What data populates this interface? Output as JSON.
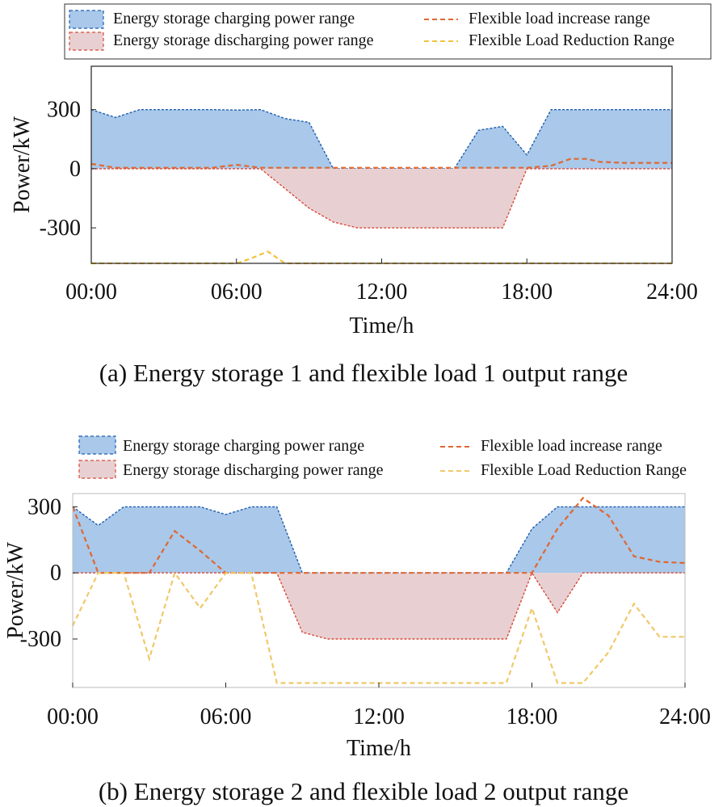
{
  "colors": {
    "charge_fill": "#a9c8ea",
    "charge_line": "#1f5fb0",
    "discharge_fill": "#e8d0d2",
    "discharge_line": "#d84a3a",
    "increase_line": "#e0672f",
    "reduction_line": "#f2c13c",
    "reduction_line_b": "#f0c869",
    "axis": "#222222",
    "plot_border_b": "#bbbbbb"
  },
  "chart_data": [
    {
      "type": "area",
      "caption": "(a) Energy storage 1 and flexible load 1 output range",
      "xlabel": "Time/h",
      "ylabel": "Power/kW",
      "xlim": [
        0,
        24
      ],
      "ylim": [
        -480,
        520
      ],
      "xticks": [
        0,
        6,
        12,
        18,
        24
      ],
      "xtick_labels": [
        "00:00",
        "06:00",
        "12:00",
        "18:00",
        "24:00"
      ],
      "yticks": [
        300,
        0,
        -300
      ],
      "ytick_labels": [
        "300",
        "0",
        "-300"
      ],
      "grid": false,
      "legend_position": "top",
      "legend": [
        {
          "key": "charge",
          "label": "Energy storage charging power range"
        },
        {
          "key": "discharge",
          "label": "Energy storage discharging power range"
        },
        {
          "key": "increase",
          "label": "Flexible load increase range"
        },
        {
          "key": "reduction",
          "label": "Flexible Load Reduction Range"
        }
      ],
      "series": [
        {
          "name": "Energy storage charging power range",
          "key": "charge",
          "x": [
            0,
            1,
            2,
            3,
            4,
            5,
            6,
            7,
            8,
            9,
            10,
            11,
            12,
            13,
            14,
            15,
            16,
            17,
            18,
            19,
            20,
            21,
            22,
            23,
            24
          ],
          "values": [
            300,
            260,
            300,
            300,
            300,
            300,
            298,
            300,
            255,
            235,
            0,
            0,
            0,
            0,
            0,
            0,
            195,
            215,
            70,
            300,
            300,
            300,
            300,
            300,
            300
          ]
        },
        {
          "name": "Energy storage discharging power range",
          "key": "discharge",
          "x": [
            0,
            7,
            8,
            9,
            10,
            11,
            12,
            13,
            14,
            15,
            16,
            17,
            18,
            24
          ],
          "values": [
            0,
            0,
            -100,
            -200,
            -270,
            -300,
            -300,
            -300,
            -300,
            -300,
            -300,
            -300,
            0,
            0
          ]
        },
        {
          "name": "Flexible load increase range",
          "key": "increase",
          "x": [
            0,
            1,
            2,
            3,
            4,
            5,
            6,
            7,
            8,
            9,
            10,
            11,
            12,
            13,
            14,
            15,
            16,
            17,
            18,
            19,
            19.8,
            20.5,
            21,
            22,
            23,
            24
          ],
          "values": [
            25,
            5,
            5,
            5,
            5,
            5,
            20,
            5,
            5,
            5,
            5,
            5,
            5,
            5,
            5,
            5,
            5,
            5,
            5,
            15,
            50,
            50,
            35,
            30,
            30,
            30
          ]
        },
        {
          "name": "Flexible Load Reduction Range",
          "key": "reduction",
          "x": [
            0,
            6,
            6.5,
            7.3,
            8,
            24
          ],
          "values": [
            -480,
            -480,
            -460,
            -420,
            -480,
            -480
          ]
        }
      ]
    },
    {
      "type": "area",
      "caption": "(b) Energy storage 2 and flexible load 2 output range",
      "xlabel": "Time/h",
      "ylabel": "Power/kW",
      "xlim": [
        0,
        24
      ],
      "ylim": [
        -520,
        360
      ],
      "xticks": [
        0,
        6,
        12,
        18,
        24
      ],
      "xtick_labels": [
        "00:00",
        "06:00",
        "12:00",
        "18:00",
        "24:00"
      ],
      "yticks": [
        300,
        0,
        -300
      ],
      "ytick_labels": [
        "300",
        "0",
        "-300"
      ],
      "grid": false,
      "legend_position": "top",
      "legend": [
        {
          "key": "charge",
          "label": "Energy storage charging power range"
        },
        {
          "key": "discharge",
          "label": "Energy storage discharging power range"
        },
        {
          "key": "increase",
          "label": "Flexible load increase range"
        },
        {
          "key": "reduction",
          "label": "Flexible Load Reduction Range"
        }
      ],
      "series": [
        {
          "name": "Energy storage charging power range",
          "key": "charge",
          "x": [
            0,
            1,
            2,
            3,
            4,
            5,
            6,
            7,
            8,
            9,
            10,
            11,
            12,
            13,
            14,
            15,
            16,
            17,
            18,
            19,
            20,
            21,
            22,
            23,
            24
          ],
          "values": [
            300,
            215,
            300,
            300,
            300,
            300,
            265,
            300,
            300,
            0,
            0,
            0,
            0,
            0,
            0,
            0,
            0,
            0,
            200,
            300,
            300,
            300,
            300,
            300,
            300
          ]
        },
        {
          "name": "Energy storage discharging power range",
          "key": "discharge",
          "x": [
            0,
            8,
            9,
            10,
            11,
            12,
            13,
            14,
            15,
            16,
            17,
            18,
            19,
            20,
            24
          ],
          "values": [
            0,
            0,
            -270,
            -300,
            -300,
            -300,
            -300,
            -300,
            -300,
            -300,
            -300,
            0,
            -180,
            0,
            0
          ]
        },
        {
          "name": "Flexible load increase range",
          "key": "increase",
          "x": [
            0,
            1,
            2,
            3,
            4,
            5,
            6,
            7,
            8,
            9,
            10,
            11,
            12,
            13,
            14,
            15,
            16,
            17,
            18,
            19,
            20,
            21,
            22,
            23,
            24
          ],
          "values": [
            300,
            0,
            0,
            0,
            190,
            100,
            0,
            0,
            0,
            0,
            0,
            0,
            0,
            0,
            0,
            0,
            0,
            0,
            0,
            200,
            340,
            260,
            75,
            50,
            45
          ]
        },
        {
          "name": "Flexible Load Reduction Range",
          "key": "reduction",
          "x": [
            0,
            1,
            2,
            3,
            4,
            5,
            6,
            7,
            8,
            9,
            10,
            11,
            12,
            13,
            14,
            15,
            16,
            17,
            18,
            19,
            20,
            21,
            22,
            23,
            24
          ],
          "values": [
            -240,
            0,
            0,
            -390,
            0,
            -160,
            0,
            0,
            -500,
            -500,
            -500,
            -500,
            -500,
            -500,
            -500,
            -500,
            -500,
            -500,
            -160,
            -500,
            -500,
            -360,
            -140,
            -290,
            -290
          ]
        }
      ]
    }
  ]
}
